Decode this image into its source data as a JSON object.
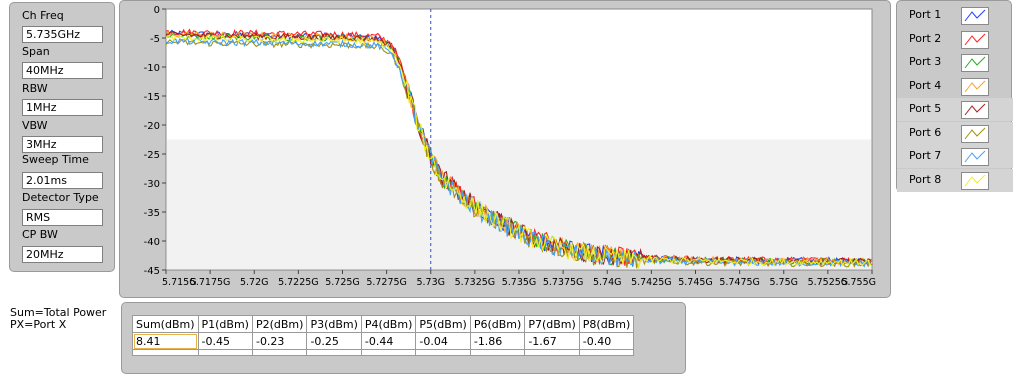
{
  "settings": [
    {
      "label": "Ch Freq",
      "value": "5.735GHz"
    },
    {
      "label": "Span",
      "value": "40MHz"
    },
    {
      "label": "RBW",
      "value": "1MHz"
    },
    {
      "label": "VBW",
      "value": "3MHz"
    },
    {
      "label": "Sweep Time",
      "value": "2.01ms"
    },
    {
      "label": "Detector Type",
      "value": "RMS"
    },
    {
      "label": "CP BW",
      "value": "20MHz"
    }
  ],
  "legend": [
    {
      "name": "Port 1",
      "color": "#1f3fff"
    },
    {
      "name": "Port 2",
      "color": "#ff2020"
    },
    {
      "name": "Port 3",
      "color": "#20b020"
    },
    {
      "name": "Port 4",
      "color": "#ffa020"
    },
    {
      "name": "Port 5",
      "color": "#a02020"
    },
    {
      "name": "Port 6",
      "color": "#a09010"
    },
    {
      "name": "Port 7",
      "color": "#40a0ff"
    },
    {
      "name": "Port 8",
      "color": "#f0f020"
    }
  ],
  "notes": {
    "line1": "Sum=Total Power",
    "line2": "PX=Port X"
  },
  "table": {
    "headers": [
      "Sum(dBm)",
      "P1(dBm)",
      "P2(dBm)",
      "P3(dBm)",
      "P4(dBm)",
      "P5(dBm)",
      "P6(dBm)",
      "P7(dBm)",
      "P8(dBm)"
    ],
    "values": [
      "8.41",
      "-0.45",
      "-0.23",
      "-0.25",
      "-0.44",
      "-0.04",
      "-1.86",
      "-1.67",
      "-0.40"
    ]
  },
  "chart_data": {
    "type": "line",
    "x_tick_labels": [
      "5.715G",
      "5.7175G",
      "5.72G",
      "5.7225G",
      "5.725G",
      "5.7275G",
      "5.73G",
      "5.7325G",
      "5.735G",
      "5.7375G",
      "5.74G",
      "5.7425G",
      "5.745G",
      "5.7475G",
      "5.75G",
      "5.7525G",
      "5.755G"
    ],
    "x_ticks_ghz": [
      5.715,
      5.7175,
      5.72,
      5.7225,
      5.725,
      5.7275,
      5.73,
      5.7325,
      5.735,
      5.7375,
      5.74,
      5.7425,
      5.745,
      5.7475,
      5.75,
      5.7525,
      5.755
    ],
    "y_tick_labels": [
      "0",
      "-5",
      "-10",
      "-15",
      "-20",
      "-25",
      "-30",
      "-35",
      "-40",
      "-45"
    ],
    "y_ticks": [
      0,
      -5,
      -10,
      -15,
      -20,
      -25,
      -30,
      -35,
      -40,
      -45
    ],
    "xlim_ghz": [
      5.715,
      5.755
    ],
    "ylim": [
      -45,
      0
    ],
    "marker_x_ghz": 5.73,
    "band_top": -22.5,
    "grid": false,
    "series": [
      {
        "color": "#1f3fff",
        "offset": 0.3
      },
      {
        "color": "#ff2020",
        "offset": 0.6
      },
      {
        "color": "#20b020",
        "offset": 0.0
      },
      {
        "color": "#ffa020",
        "offset": 0.2
      },
      {
        "color": "#a02020",
        "offset": 0.1
      },
      {
        "color": "#a09010",
        "offset": -1.2
      },
      {
        "color": "#40a0ff",
        "offset": -1.0
      },
      {
        "color": "#f0f020",
        "offset": -0.4
      }
    ],
    "envelope": {
      "x_ghz": [
        5.715,
        5.7175,
        5.72,
        5.7225,
        5.725,
        5.727,
        5.7278,
        5.7283,
        5.7288,
        5.7293,
        5.7298,
        5.7305,
        5.7315,
        5.7325,
        5.7335,
        5.735,
        5.7365,
        5.738,
        5.7395,
        5.741,
        5.7425,
        5.745,
        5.7475,
        5.75,
        5.7525,
        5.755
      ],
      "y": [
        -4.5,
        -4.7,
        -4.8,
        -4.9,
        -5.0,
        -5.3,
        -6.5,
        -10.0,
        -15.0,
        -20.0,
        -24.0,
        -28.5,
        -31.5,
        -34.0,
        -36.0,
        -38.5,
        -40.3,
        -41.6,
        -42.4,
        -42.9,
        -43.1,
        -43.3,
        -43.4,
        -43.5,
        -43.5,
        -43.6
      ]
    }
  }
}
